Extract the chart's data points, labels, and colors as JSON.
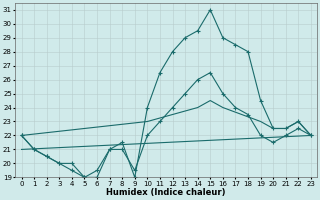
{
  "xlabel": "Humidex (Indice chaleur)",
  "xlim": [
    -0.5,
    23.5
  ],
  "ylim": [
    19,
    31.5
  ],
  "xticks": [
    0,
    1,
    2,
    3,
    4,
    5,
    6,
    7,
    8,
    9,
    10,
    11,
    12,
    13,
    14,
    15,
    16,
    17,
    18,
    19,
    20,
    21,
    22,
    23
  ],
  "yticks": [
    19,
    20,
    21,
    22,
    23,
    24,
    25,
    26,
    27,
    28,
    29,
    30,
    31
  ],
  "bg_color": "#d0eaea",
  "line_color": "#1a6b6b",
  "grid_color": "#b8cccc",
  "lines": [
    {
      "x": [
        0,
        1,
        2,
        3,
        4,
        5,
        6,
        7,
        8,
        9,
        10,
        11,
        12,
        13,
        14,
        15,
        16,
        17,
        18,
        19,
        20,
        21,
        22,
        23
      ],
      "y": [
        22,
        21,
        20.5,
        20,
        20,
        19,
        19,
        21,
        21.5,
        19,
        24,
        26.5,
        28,
        29,
        29.5,
        31,
        29,
        28.5,
        28,
        24.5,
        22.5,
        22.5,
        23,
        22
      ],
      "marker": true
    },
    {
      "x": [
        0,
        1,
        2,
        3,
        4,
        5,
        6,
        7,
        8,
        9,
        10,
        11,
        12,
        13,
        14,
        15,
        16,
        17,
        18,
        19,
        20,
        21,
        22,
        23
      ],
      "y": [
        22,
        21,
        20.5,
        20,
        19.5,
        19,
        19.5,
        21,
        21,
        19.5,
        22,
        23,
        24,
        25,
        26,
        26.5,
        25,
        24,
        23.5,
        22,
        21.5,
        22,
        22.5,
        22
      ],
      "marker": true
    },
    {
      "x": [
        0,
        10,
        14,
        15,
        16,
        19,
        20,
        21,
        22,
        23
      ],
      "y": [
        22,
        23,
        24,
        24.5,
        24,
        23,
        22.5,
        22.5,
        23,
        22
      ],
      "marker": false
    },
    {
      "x": [
        0,
        23
      ],
      "y": [
        21,
        22
      ],
      "marker": false
    }
  ]
}
